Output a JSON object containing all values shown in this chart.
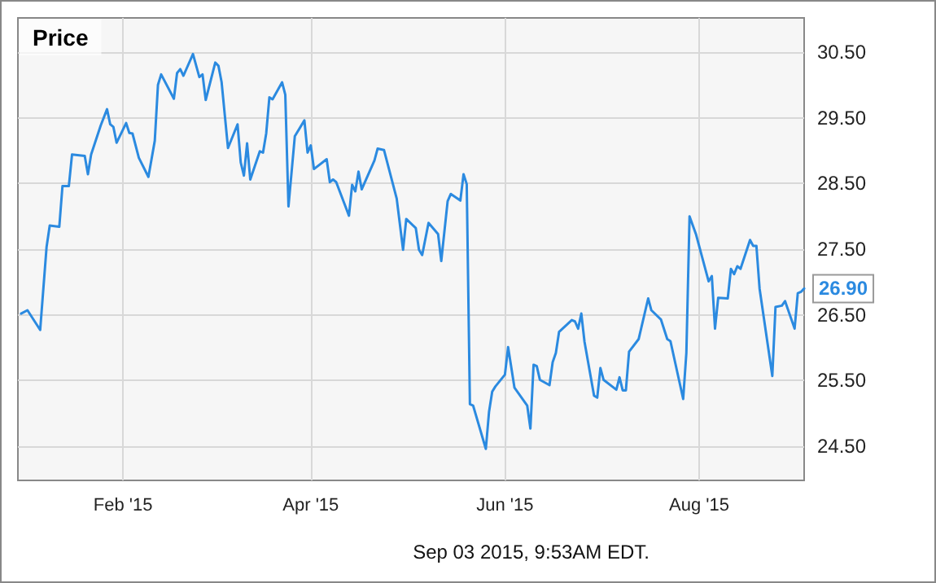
{
  "chart_data": {
    "type": "line",
    "title": "Price",
    "annotations": [
      {
        "text": "26.90",
        "x": "2015-09-03",
        "y": 26.9
      },
      "Sep 03 2015, 9:53AM EDT."
    ],
    "x": [
      "2014-12-31",
      "2015-01-02",
      "2015-01-06",
      "2015-01-08",
      "2015-01-09",
      "2015-01-12",
      "2015-01-13",
      "2015-01-15",
      "2015-01-16",
      "2015-01-20",
      "2015-01-21",
      "2015-01-22",
      "2015-01-25",
      "2015-01-27",
      "2015-01-28",
      "2015-01-29",
      "2015-01-30",
      "2015-02-02",
      "2015-02-03",
      "2015-02-04",
      "2015-02-06",
      "2015-02-09",
      "2015-02-11",
      "2015-02-12",
      "2015-02-13",
      "2015-02-17",
      "2015-02-18",
      "2015-02-19",
      "2015-02-20",
      "2015-02-23",
      "2015-02-25",
      "2015-02-26",
      "2015-02-27",
      "2015-03-02",
      "2015-03-03",
      "2015-03-04",
      "2015-03-06",
      "2015-03-09",
      "2015-03-10",
      "2015-03-11",
      "2015-03-12",
      "2015-03-13",
      "2015-03-16",
      "2015-03-17",
      "2015-03-18",
      "2015-03-19",
      "2015-03-20",
      "2015-03-23",
      "2015-03-24",
      "2015-03-25",
      "2015-03-27",
      "2015-03-30",
      "2015-03-31",
      "2015-04-01",
      "2015-04-02",
      "2015-04-06",
      "2015-04-07",
      "2015-04-08",
      "2015-04-09",
      "2015-04-13",
      "2015-04-14",
      "2015-04-15",
      "2015-04-16",
      "2015-04-17",
      "2015-04-21",
      "2015-04-22",
      "2015-04-24",
      "2015-04-28",
      "2015-04-30",
      "2015-05-01",
      "2015-05-04",
      "2015-05-05",
      "2015-05-06",
      "2015-05-08",
      "2015-05-11",
      "2015-05-12",
      "2015-05-14",
      "2015-05-15",
      "2015-05-18",
      "2015-05-19",
      "2015-05-20",
      "2015-05-21",
      "2015-05-22",
      "2015-05-26",
      "2015-05-27",
      "2015-05-28",
      "2015-05-29",
      "2015-06-01",
      "2015-06-02",
      "2015-06-04",
      "2015-06-08",
      "2015-06-09",
      "2015-06-10",
      "2015-06-11",
      "2015-06-12",
      "2015-06-15",
      "2015-06-16",
      "2015-06-17",
      "2015-06-18",
      "2015-06-22",
      "2015-06-23",
      "2015-06-24",
      "2015-06-25",
      "2015-06-26",
      "2015-06-29",
      "2015-06-30",
      "2015-07-01",
      "2015-07-02",
      "2015-07-06",
      "2015-07-07",
      "2015-07-08",
      "2015-07-09",
      "2015-07-10",
      "2015-07-13",
      "2015-07-16",
      "2015-07-17",
      "2015-07-20",
      "2015-07-22",
      "2015-07-23",
      "2015-07-27",
      "2015-07-28",
      "2015-07-29",
      "2015-07-31",
      "2015-08-04",
      "2015-08-05",
      "2015-08-06",
      "2015-08-07",
      "2015-08-10",
      "2015-08-11",
      "2015-08-12",
      "2015-08-13",
      "2015-08-14",
      "2015-08-17",
      "2015-08-18",
      "2015-08-19",
      "2015-08-20",
      "2015-08-24",
      "2015-08-25",
      "2015-08-27",
      "2015-08-28",
      "2015-08-31",
      "2015-09-01",
      "2015-09-02",
      "2015-09-03"
    ],
    "values": [
      26.52,
      26.57,
      26.27,
      27.53,
      27.86,
      27.84,
      28.46,
      28.46,
      28.94,
      28.92,
      28.64,
      28.94,
      29.38,
      29.63,
      29.4,
      29.36,
      29.12,
      29.42,
      29.27,
      29.26,
      28.89,
      28.6,
      29.15,
      30.0,
      30.16,
      29.79,
      30.18,
      30.24,
      30.14,
      30.47,
      30.12,
      30.16,
      29.77,
      30.34,
      30.29,
      30.04,
      29.04,
      29.4,
      28.82,
      28.62,
      29.11,
      28.56,
      28.99,
      28.97,
      29.26,
      29.81,
      29.78,
      30.04,
      29.85,
      28.15,
      29.22,
      29.46,
      28.97,
      29.08,
      28.72,
      28.87,
      28.52,
      28.56,
      28.52,
      28.01,
      28.48,
      28.38,
      28.68,
      28.41,
      28.85,
      29.03,
      29.01,
      28.27,
      27.49,
      27.96,
      27.82,
      27.49,
      27.41,
      27.9,
      27.73,
      27.32,
      28.23,
      28.34,
      28.24,
      28.64,
      28.49,
      25.14,
      25.12,
      24.46,
      25.02,
      25.33,
      25.41,
      25.59,
      26.01,
      25.39,
      25.12,
      24.77,
      25.74,
      25.72,
      25.51,
      25.43,
      25.78,
      25.92,
      26.24,
      26.42,
      26.4,
      26.29,
      26.52,
      26.09,
      25.27,
      25.24,
      25.69,
      25.51,
      25.36,
      25.55,
      25.35,
      25.35,
      25.94,
      26.13,
      26.75,
      26.57,
      26.43,
      26.13,
      26.1,
      25.22,
      25.92,
      28.0,
      27.73,
      27.01,
      27.09,
      26.29,
      26.76,
      26.75,
      27.2,
      27.12,
      27.24,
      27.2,
      27.64,
      27.55,
      27.55,
      26.9,
      25.57,
      26.62,
      26.64,
      26.71,
      26.29,
      26.83,
      26.85,
      26.9
    ],
    "color": "#2b8ae0",
    "xlim": [
      "2014-12-30",
      "2015-09-03"
    ],
    "xticks": [
      {
        "value": "2015-02-01",
        "label": "Feb '15"
      },
      {
        "value": "2015-04-01",
        "label": "Apr '15"
      },
      {
        "value": "2015-06-01",
        "label": "Jun '15"
      },
      {
        "value": "2015-08-01",
        "label": "Aug '15"
      }
    ],
    "ylim": [
      23.98,
      31.02
    ],
    "yticks": [
      {
        "value": 24.5,
        "label": "24.50"
      },
      {
        "value": 25.5,
        "label": "25.50"
      },
      {
        "value": 26.5,
        "label": "26.50"
      },
      {
        "value": 27.5,
        "label": "27.50"
      },
      {
        "value": 28.5,
        "label": "28.50"
      },
      {
        "value": 29.5,
        "label": "29.50"
      },
      {
        "value": 30.5,
        "label": "30.50"
      }
    ],
    "grid": true,
    "marker": "none",
    "line_style": "solid"
  }
}
